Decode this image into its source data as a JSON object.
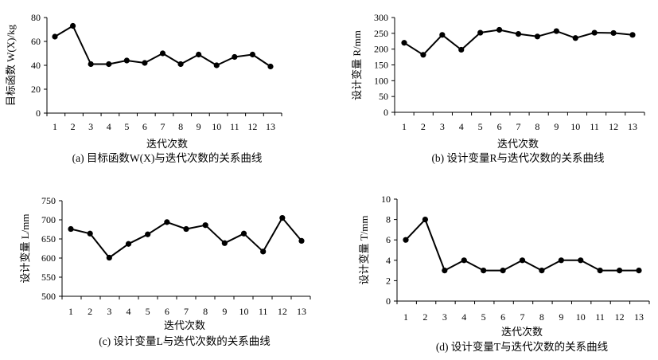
{
  "chart_data": [
    {
      "type": "line",
      "panel": "a",
      "x": [
        1,
        2,
        3,
        4,
        5,
        6,
        7,
        8,
        9,
        10,
        11,
        12,
        13
      ],
      "y": [
        64,
        73,
        41,
        41,
        44,
        42,
        50,
        41,
        49,
        40,
        47,
        49,
        39
      ],
      "xlabel": "",
      "ylabel": "目标函数  W(X)/kg",
      "ylim": [
        0,
        80
      ],
      "yticks": [
        0,
        20,
        40,
        60,
        80
      ],
      "caption": "(a) 目标函数W(X)与迭代次数的关系曲线",
      "grid": false
    },
    {
      "type": "line",
      "panel": "b",
      "x": [
        1,
        2,
        3,
        4,
        5,
        6,
        7,
        8,
        9,
        10,
        11,
        12,
        13
      ],
      "y": [
        220,
        182,
        245,
        198,
        252,
        261,
        248,
        240,
        257,
        235,
        252,
        251,
        245
      ],
      "xlabel": "迭代次数",
      "ylabel": "设计变量 R/mm",
      "ylim": [
        0,
        300
      ],
      "yticks": [
        0,
        50,
        100,
        150,
        200,
        250,
        300
      ],
      "caption": "(b) 设计变量R与迭代次数的关系曲线",
      "grid": false
    },
    {
      "type": "line",
      "panel": "c",
      "x": [
        1,
        2,
        3,
        4,
        5,
        6,
        7,
        8,
        9,
        10,
        11,
        12,
        13
      ],
      "y": [
        676,
        664,
        601,
        637,
        662,
        694,
        676,
        686,
        639,
        664,
        617,
        705,
        645
      ],
      "xlabel": "迭代次数",
      "ylabel": "设计变量 L/mm",
      "ylim": [
        500,
        750
      ],
      "yticks": [
        500,
        550,
        600,
        650,
        700,
        750
      ],
      "caption": "(c) 设计变量L与迭代次数的关系曲线",
      "grid": false
    },
    {
      "type": "line",
      "panel": "d",
      "x": [
        1,
        2,
        3,
        4,
        5,
        6,
        7,
        8,
        9,
        10,
        11,
        12,
        13
      ],
      "y": [
        6,
        8,
        3,
        4,
        3,
        3,
        4,
        3,
        4,
        4,
        3,
        3,
        3
      ],
      "xlabel": "迭代次数",
      "ylabel": "设计变量 T/mm",
      "ylim": [
        0,
        10
      ],
      "yticks": [
        0,
        2,
        4,
        6,
        8,
        10
      ],
      "caption": "(d) 设计变量T与迭代次数的关系曲线",
      "grid": false
    }
  ],
  "shared_xlabel": "迭代次数"
}
